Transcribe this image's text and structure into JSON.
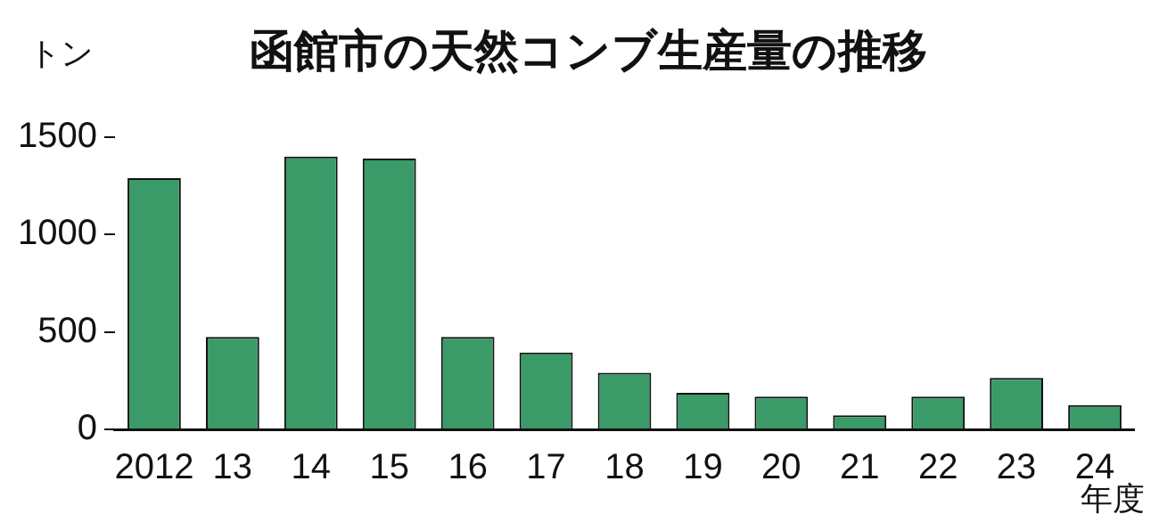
{
  "chart_data": {
    "type": "bar",
    "title": "函館市の天然コンブ生産量の推移",
    "ylabel": "トン",
    "xlabel": "年度",
    "categories": [
      "2012",
      "13",
      "14",
      "15",
      "16",
      "17",
      "18",
      "19",
      "20",
      "21",
      "22",
      "23",
      "24"
    ],
    "values": [
      1290,
      474,
      1400,
      1390,
      474,
      395,
      290,
      188,
      168,
      72,
      168,
      264,
      125
    ],
    "color": "#3a9a68",
    "ylim": [
      0,
      1500
    ],
    "yticks": [
      0,
      500,
      1000,
      1500
    ],
    "grid": false,
    "legend": false
  }
}
